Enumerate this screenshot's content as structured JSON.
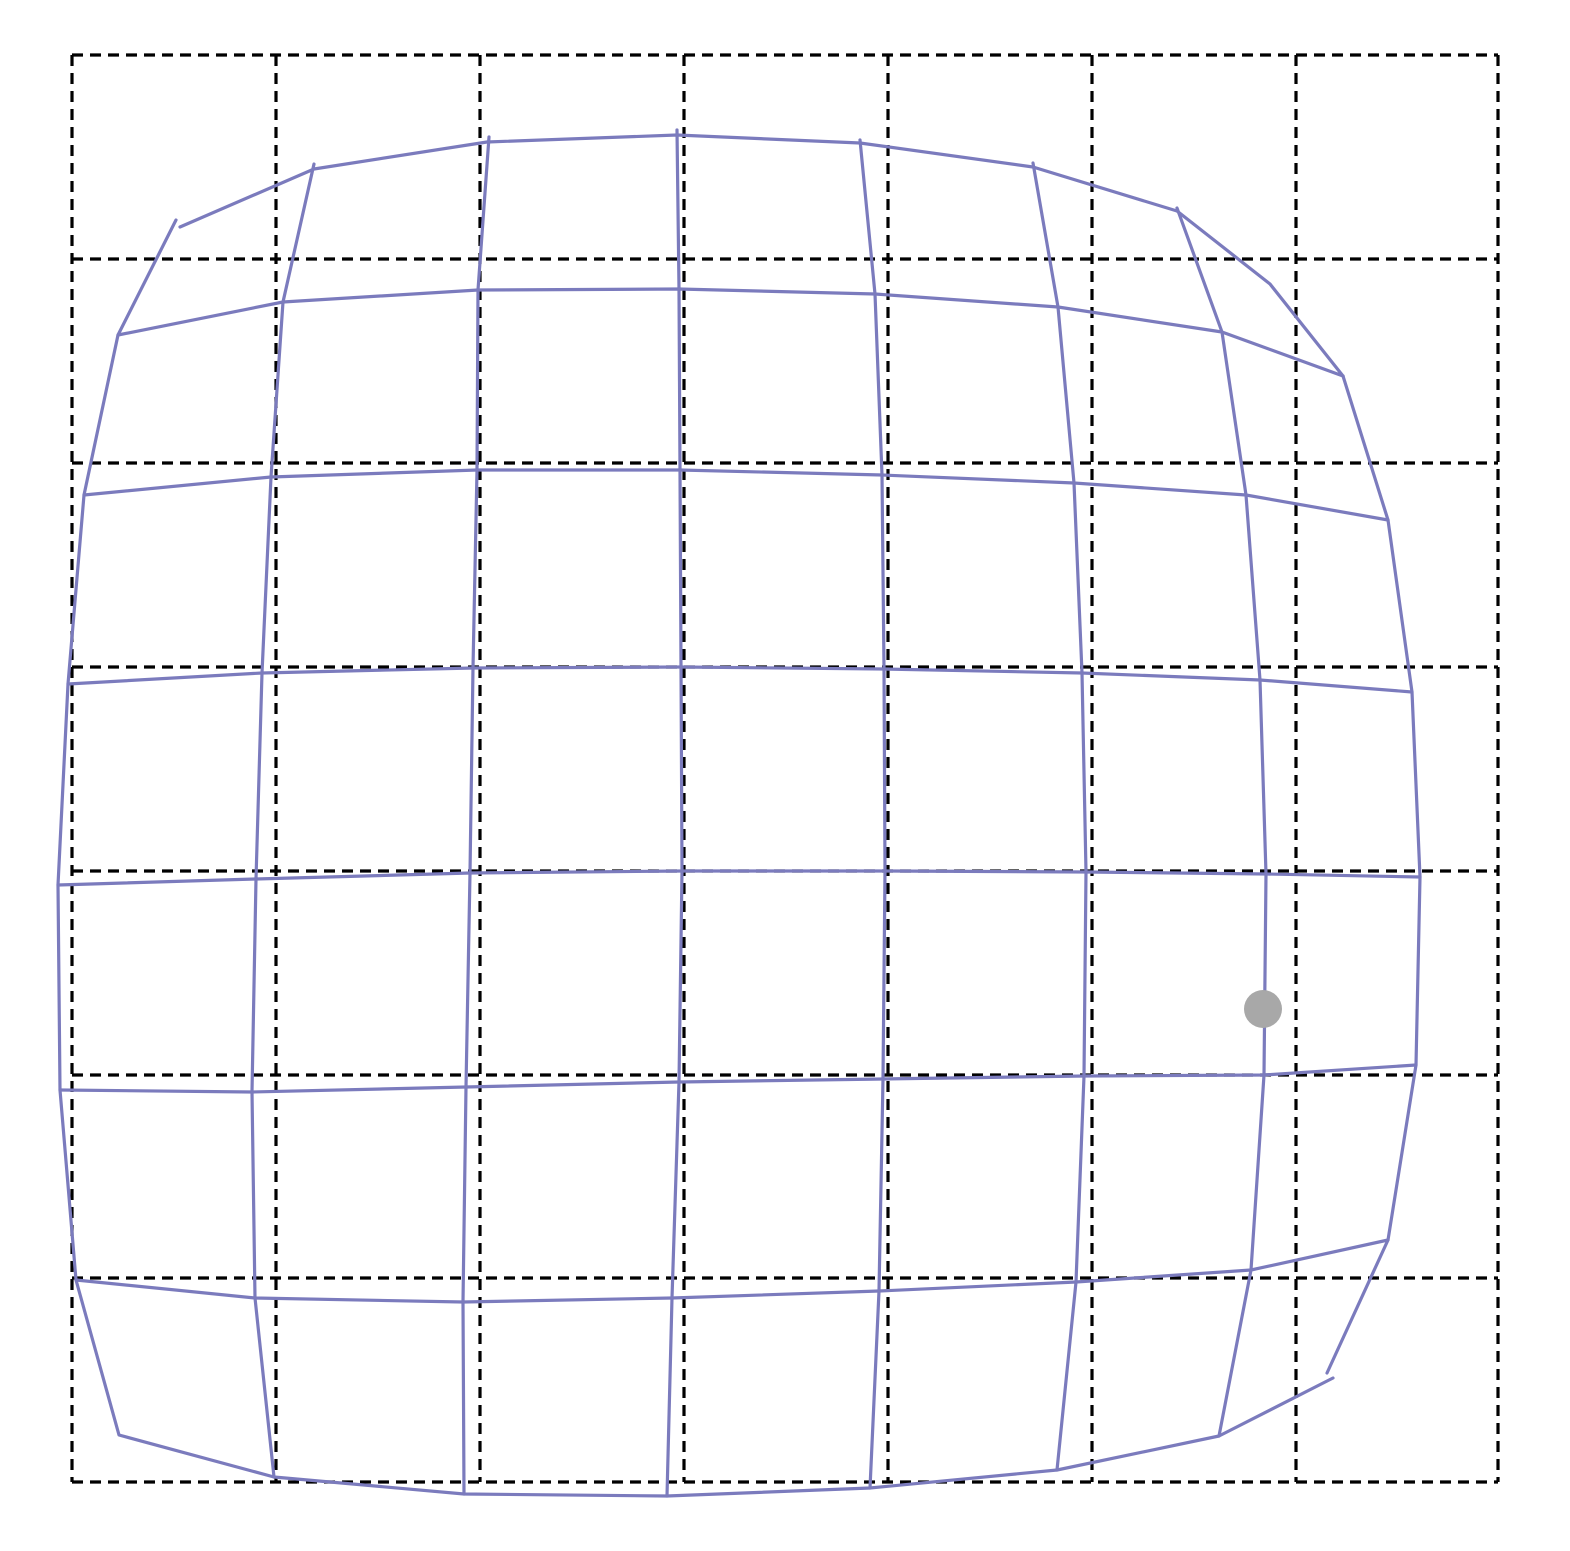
{
  "diagram": {
    "type": "distortion-grid",
    "reference_grid": {
      "columns": 7,
      "rows": 7,
      "line_style": "dashed",
      "color": "#000000"
    },
    "warped_mesh": {
      "color": "#7b7bbd",
      "distortion": "barrel"
    },
    "marker": {
      "color": "#a8a8a8",
      "shape": "circle"
    }
  }
}
